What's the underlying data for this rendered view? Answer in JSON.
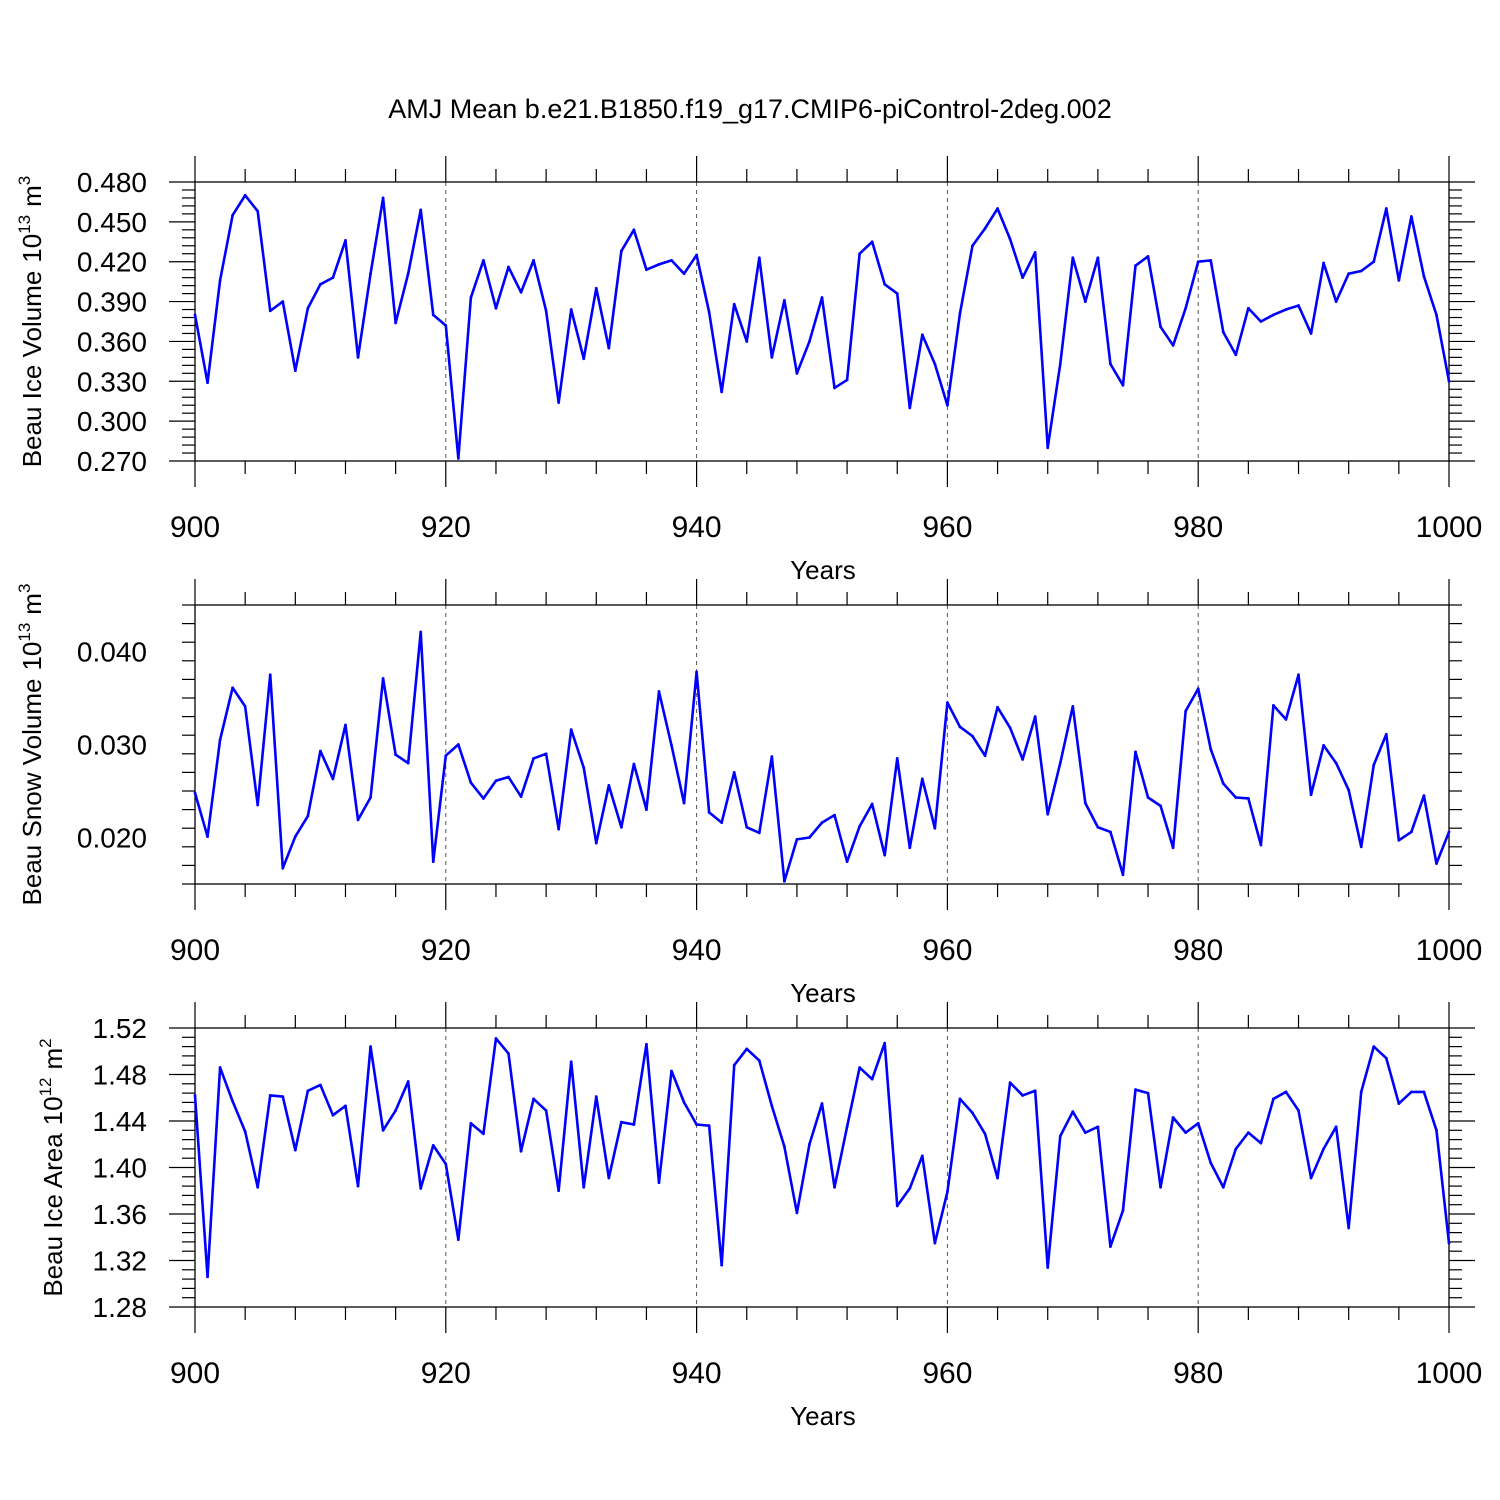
{
  "figure": {
    "title": "AMJ Mean b.e21.B1850.f19_g17.CMIP6-piControl-2deg.002",
    "line_color": "#0000ff"
  },
  "chart_data": [
    {
      "type": "line",
      "ylabel": "Beau Ice Volume",
      "ylabel_unit_base": "10",
      "ylabel_unit_exp": "13",
      "ylabel_unit_m": "m",
      "ylabel_unit_pow": "3",
      "xlabel": "Years",
      "xlim": [
        900,
        1000
      ],
      "ylim": [
        0.27,
        0.48
      ],
      "xticks": [
        900,
        920,
        940,
        960,
        980,
        1000
      ],
      "xtick_labels": [
        "900",
        "920",
        "940",
        "960",
        "980",
        "1000"
      ],
      "yticks": [
        0.27,
        0.3,
        0.33,
        0.36,
        0.39,
        0.42,
        0.45,
        0.48
      ],
      "ytick_labels": [
        "0.270",
        "0.300",
        "0.330",
        "0.360",
        "0.390",
        "0.420",
        "0.450",
        "0.480"
      ],
      "grid": "vertical dashed at 920, 940, 960, 980",
      "x_start": 900,
      "values": [
        0.38,
        0.329,
        0.406,
        0.455,
        0.47,
        0.458,
        0.383,
        0.39,
        0.338,
        0.385,
        0.403,
        0.408,
        0.436,
        0.348,
        0.411,
        0.468,
        0.374,
        0.411,
        0.459,
        0.38,
        0.372,
        0.272,
        0.393,
        0.421,
        0.385,
        0.416,
        0.397,
        0.421,
        0.383,
        0.314,
        0.384,
        0.347,
        0.4,
        0.355,
        0.428,
        0.444,
        0.414,
        0.418,
        0.421,
        0.411,
        0.425,
        0.382,
        0.322,
        0.388,
        0.36,
        0.423,
        0.348,
        0.391,
        0.336,
        0.36,
        0.393,
        0.325,
        0.331,
        0.426,
        0.435,
        0.403,
        0.396,
        0.31,
        0.365,
        0.343,
        0.312,
        0.381,
        0.432,
        0.445,
        0.46,
        0.437,
        0.408,
        0.427,
        0.28,
        0.343,
        0.423,
        0.39,
        0.423,
        0.343,
        0.327,
        0.417,
        0.424,
        0.371,
        0.357,
        0.385,
        0.42,
        0.421,
        0.367,
        0.35,
        0.385,
        0.375,
        0.38,
        0.384,
        0.387,
        0.366,
        0.419,
        0.39,
        0.411,
        0.413,
        0.42,
        0.46,
        0.406,
        0.454,
        0.409,
        0.38,
        0.33
      ]
    },
    {
      "type": "line",
      "ylabel": "Beau Snow Volume",
      "ylabel_unit_base": "10",
      "ylabel_unit_exp": "13",
      "ylabel_unit_m": "m",
      "ylabel_unit_pow": "3",
      "xlabel": "Years",
      "xlim": [
        900,
        1000
      ],
      "ylim": [
        0.015,
        0.045
      ],
      "xticks": [
        900,
        920,
        940,
        960,
        980,
        1000
      ],
      "xtick_labels": [
        "900",
        "920",
        "940",
        "960",
        "980",
        "1000"
      ],
      "yticks": [
        0.02,
        0.03,
        0.04
      ],
      "ytick_labels": [
        "0.020",
        "0.030",
        "0.040"
      ],
      "grid": "vertical dashed at 920, 940, 960, 980",
      "x_start": 900,
      "values": [
        0.0248,
        0.0201,
        0.0305,
        0.0361,
        0.0341,
        0.0235,
        0.0375,
        0.0167,
        0.0201,
        0.0223,
        0.0293,
        0.0263,
        0.0321,
        0.0219,
        0.0243,
        0.0371,
        0.0289,
        0.028,
        0.0421,
        0.0174,
        0.0288,
        0.03,
        0.0259,
        0.0242,
        0.0261,
        0.0265,
        0.0244,
        0.0285,
        0.029,
        0.0209,
        0.0316,
        0.0275,
        0.0194,
        0.0256,
        0.0211,
        0.0279,
        0.023,
        0.0357,
        0.0299,
        0.0237,
        0.0378,
        0.0227,
        0.0216,
        0.027,
        0.0211,
        0.0205,
        0.0287,
        0.0153,
        0.0198,
        0.02,
        0.0216,
        0.0224,
        0.0174,
        0.0212,
        0.0236,
        0.0181,
        0.0285,
        0.0189,
        0.0263,
        0.021,
        0.0345,
        0.0319,
        0.0309,
        0.0288,
        0.034,
        0.0318,
        0.0284,
        0.033,
        0.0225,
        0.028,
        0.0341,
        0.0237,
        0.0211,
        0.0206,
        0.016,
        0.0292,
        0.0243,
        0.0234,
        0.0189,
        0.0336,
        0.036,
        0.0295,
        0.0258,
        0.0243,
        0.0242,
        0.0192,
        0.0342,
        0.0327,
        0.0375,
        0.0246,
        0.0299,
        0.028,
        0.0251,
        0.019,
        0.0278,
        0.0311,
        0.0197,
        0.0206,
        0.0245,
        0.0172,
        0.0206
      ]
    },
    {
      "type": "line",
      "ylabel": "Beau Ice Area",
      "ylabel_unit_base": "10",
      "ylabel_unit_exp": "12",
      "ylabel_unit_m": "m",
      "ylabel_unit_pow": "2",
      "xlabel": "Years",
      "xlim": [
        900,
        1000
      ],
      "ylim": [
        1.28,
        1.52
      ],
      "xticks": [
        900,
        920,
        940,
        960,
        980,
        1000
      ],
      "xtick_labels": [
        "900",
        "920",
        "940",
        "960",
        "980",
        "1000"
      ],
      "yticks": [
        1.28,
        1.32,
        1.36,
        1.4,
        1.44,
        1.48,
        1.52
      ],
      "ytick_labels": [
        "1.28",
        "1.32",
        "1.36",
        "1.40",
        "1.44",
        "1.48",
        "1.52"
      ],
      "grid": "vertical dashed at 920, 940, 960, 980",
      "x_start": 900,
      "values": [
        1.462,
        1.306,
        1.486,
        1.457,
        1.431,
        1.383,
        1.462,
        1.461,
        1.415,
        1.466,
        1.471,
        1.445,
        1.453,
        1.384,
        1.504,
        1.432,
        1.449,
        1.474,
        1.382,
        1.419,
        1.403,
        1.338,
        1.438,
        1.429,
        1.511,
        1.498,
        1.414,
        1.459,
        1.449,
        1.38,
        1.491,
        1.383,
        1.461,
        1.391,
        1.439,
        1.437,
        1.506,
        1.387,
        1.483,
        1.456,
        1.437,
        1.436,
        1.316,
        1.488,
        1.502,
        1.492,
        1.453,
        1.418,
        1.361,
        1.42,
        1.455,
        1.383,
        1.435,
        1.486,
        1.476,
        1.507,
        1.367,
        1.382,
        1.41,
        1.335,
        1.379,
        1.459,
        1.447,
        1.429,
        1.391,
        1.473,
        1.462,
        1.466,
        1.314,
        1.427,
        1.448,
        1.43,
        1.435,
        1.332,
        1.363,
        1.467,
        1.464,
        1.383,
        1.443,
        1.43,
        1.438,
        1.404,
        1.383,
        1.416,
        1.43,
        1.421,
        1.459,
        1.465,
        1.449,
        1.391,
        1.416,
        1.435,
        1.348,
        1.465,
        1.504,
        1.494,
        1.455,
        1.465,
        1.465,
        1.432,
        1.335
      ]
    }
  ]
}
